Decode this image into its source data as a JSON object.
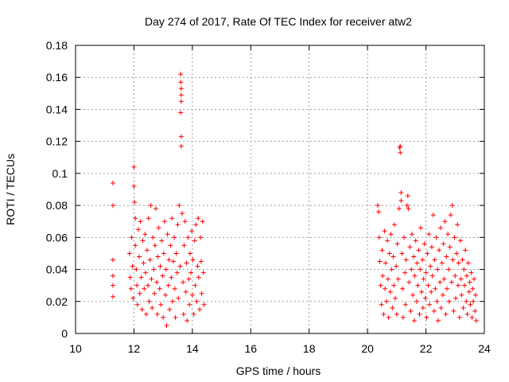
{
  "chart_data": {
    "type": "scatter",
    "title": "Day 274 of 2017, Rate Of TEC Index for receiver atw2",
    "xlabel": "GPS time / hours",
    "ylabel": "ROTI / TECUs",
    "xlim": [
      10,
      24
    ],
    "ylim": [
      0,
      0.18
    ],
    "x_ticks": [
      "10",
      "12",
      "14",
      "16",
      "18",
      "20",
      "22",
      "24"
    ],
    "y_ticks": [
      "0",
      "0.02",
      "0.04",
      "0.06",
      "0.08",
      "0.1",
      "0.12",
      "0.14",
      "0.16",
      "0.18"
    ],
    "grid": true,
    "marker": "+",
    "color": "#ff0000",
    "series": [
      {
        "name": "ROTI",
        "points": [
          [
            11.28,
            0.094
          ],
          [
            11.28,
            0.08
          ],
          [
            11.28,
            0.046
          ],
          [
            11.28,
            0.036
          ],
          [
            11.28,
            0.03
          ],
          [
            11.28,
            0.023
          ],
          [
            11.85,
            0.05
          ],
          [
            11.87,
            0.035
          ],
          [
            11.9,
            0.028
          ],
          [
            11.92,
            0.06
          ],
          [
            11.95,
            0.042
          ],
          [
            11.97,
            0.022
          ],
          [
            12.0,
            0.104
          ],
          [
            12.0,
            0.092
          ],
          [
            12.02,
            0.082
          ],
          [
            12.05,
            0.072
          ],
          [
            12.05,
            0.055
          ],
          [
            12.08,
            0.04
          ],
          [
            12.1,
            0.03
          ],
          [
            12.12,
            0.018
          ],
          [
            12.15,
            0.065
          ],
          [
            12.18,
            0.048
          ],
          [
            12.2,
            0.025
          ],
          [
            12.22,
            0.07
          ],
          [
            12.25,
            0.035
          ],
          [
            12.28,
            0.015
          ],
          [
            12.3,
            0.058
          ],
          [
            12.33,
            0.044
          ],
          [
            12.35,
            0.028
          ],
          [
            12.38,
            0.062
          ],
          [
            12.4,
            0.038
          ],
          [
            12.42,
            0.012
          ],
          [
            12.45,
            0.052
          ],
          [
            12.48,
            0.03
          ],
          [
            12.5,
            0.072
          ],
          [
            12.52,
            0.02
          ],
          [
            12.55,
            0.046
          ],
          [
            12.58,
            0.08
          ],
          [
            12.6,
            0.034
          ],
          [
            12.62,
            0.016
          ],
          [
            12.65,
            0.06
          ],
          [
            12.68,
            0.04
          ],
          [
            12.7,
            0.025
          ],
          [
            12.72,
            0.055
          ],
          [
            12.75,
            0.078
          ],
          [
            12.78,
            0.032
          ],
          [
            12.8,
            0.012
          ],
          [
            12.82,
            0.048
          ],
          [
            12.85,
            0.066
          ],
          [
            12.88,
            0.028
          ],
          [
            12.9,
            0.042
          ],
          [
            12.92,
            0.018
          ],
          [
            12.95,
            0.058
          ],
          [
            12.98,
            0.036
          ],
          [
            13.0,
            0.01
          ],
          [
            13.02,
            0.05
          ],
          [
            13.05,
            0.07
          ],
          [
            13.08,
            0.024
          ],
          [
            13.1,
            0.04
          ],
          [
            13.12,
            0.005
          ],
          [
            13.15,
            0.062
          ],
          [
            13.18,
            0.03
          ],
          [
            13.2,
            0.046
          ],
          [
            13.22,
            0.015
          ],
          [
            13.25,
            0.055
          ],
          [
            13.28,
            0.035
          ],
          [
            13.3,
            0.072
          ],
          [
            13.32,
            0.02
          ],
          [
            13.35,
            0.045
          ],
          [
            13.38,
            0.06
          ],
          [
            13.4,
            0.028
          ],
          [
            13.42,
            0.01
          ],
          [
            13.45,
            0.05
          ],
          [
            13.48,
            0.038
          ],
          [
            13.5,
            0.068
          ],
          [
            13.52,
            0.022
          ],
          [
            13.55,
            0.08
          ],
          [
            13.58,
            0.042
          ],
          [
            13.6,
            0.162
          ],
          [
            13.6,
            0.157
          ],
          [
            13.62,
            0.153
          ],
          [
            13.62,
            0.149
          ],
          [
            13.62,
            0.145
          ],
          [
            13.6,
            0.138
          ],
          [
            13.62,
            0.123
          ],
          [
            13.62,
            0.117
          ],
          [
            13.65,
            0.075
          ],
          [
            13.68,
            0.032
          ],
          [
            13.7,
            0.012
          ],
          [
            13.72,
            0.055
          ],
          [
            13.75,
            0.07
          ],
          [
            13.78,
            0.026
          ],
          [
            13.8,
            0.044
          ],
          [
            13.82,
            0.008
          ],
          [
            13.85,
            0.06
          ],
          [
            13.88,
            0.034
          ],
          [
            13.9,
            0.018
          ],
          [
            13.92,
            0.05
          ],
          [
            13.95,
            0.038
          ],
          [
            13.98,
            0.064
          ],
          [
            14.0,
            0.024
          ],
          [
            14.02,
            0.046
          ],
          [
            14.05,
            0.012
          ],
          [
            14.08,
            0.058
          ],
          [
            14.1,
            0.03
          ],
          [
            14.12,
            0.068
          ],
          [
            14.15,
            0.02
          ],
          [
            14.18,
            0.042
          ],
          [
            14.2,
            0.072
          ],
          [
            14.22,
            0.035
          ],
          [
            14.25,
            0.015
          ],
          [
            14.28,
            0.06
          ],
          [
            14.3,
            0.045
          ],
          [
            14.32,
            0.025
          ],
          [
            14.35,
            0.07
          ],
          [
            14.38,
            0.038
          ],
          [
            14.4,
            0.018
          ],
          [
            20.35,
            0.08
          ],
          [
            20.38,
            0.076
          ],
          [
            20.4,
            0.06
          ],
          [
            20.42,
            0.045
          ],
          [
            20.45,
            0.03
          ],
          [
            20.48,
            0.018
          ],
          [
            20.5,
            0.052
          ],
          [
            20.52,
            0.036
          ],
          [
            20.55,
            0.012
          ],
          [
            20.58,
            0.064
          ],
          [
            20.6,
            0.028
          ],
          [
            20.62,
            0.044
          ],
          [
            20.65,
            0.02
          ],
          [
            20.68,
            0.058
          ],
          [
            20.7,
            0.034
          ],
          [
            20.72,
            0.01
          ],
          [
            20.75,
            0.05
          ],
          [
            20.78,
            0.026
          ],
          [
            20.8,
            0.062
          ],
          [
            20.82,
            0.04
          ],
          [
            20.85,
            0.016
          ],
          [
            20.88,
            0.048
          ],
          [
            20.9,
            0.03
          ],
          [
            20.92,
            0.068
          ],
          [
            20.95,
            0.022
          ],
          [
            20.98,
            0.042
          ],
          [
            21.0,
            0.012
          ],
          [
            21.02,
            0.056
          ],
          [
            21.05,
            0.034
          ],
          [
            21.08,
            0.078
          ],
          [
            21.1,
            0.116
          ],
          [
            21.12,
            0.117
          ],
          [
            21.12,
            0.113
          ],
          [
            21.15,
            0.088
          ],
          [
            21.15,
            0.083
          ],
          [
            21.18,
            0.05
          ],
          [
            21.2,
            0.028
          ],
          [
            21.22,
            0.01
          ],
          [
            21.25,
            0.06
          ],
          [
            21.28,
            0.038
          ],
          [
            21.3,
            0.018
          ],
          [
            21.32,
            0.046
          ],
          [
            21.35,
            0.08
          ],
          [
            21.38,
            0.086
          ],
          [
            21.4,
            0.078
          ],
          [
            21.42,
            0.032
          ],
          [
            21.45,
            0.054
          ],
          [
            21.48,
            0.014
          ],
          [
            21.5,
            0.04
          ],
          [
            21.52,
            0.062
          ],
          [
            21.55,
            0.024
          ],
          [
            21.58,
            0.048
          ],
          [
            21.6,
            0.008
          ],
          [
            21.62,
            0.036
          ],
          [
            21.65,
            0.058
          ],
          [
            21.68,
            0.02
          ],
          [
            21.7,
            0.044
          ],
          [
            21.72,
            0.03
          ],
          [
            21.75,
            0.052
          ],
          [
            21.78,
            0.012
          ],
          [
            21.8,
            0.04
          ],
          [
            21.82,
            0.066
          ],
          [
            21.85,
            0.026
          ],
          [
            21.88,
            0.046
          ],
          [
            21.9,
            0.016
          ],
          [
            21.92,
            0.034
          ],
          [
            21.95,
            0.056
          ],
          [
            21.98,
            0.022
          ],
          [
            22.0,
            0.038
          ],
          [
            22.02,
            0.01
          ],
          [
            22.05,
            0.05
          ],
          [
            22.08,
            0.03
          ],
          [
            22.1,
            0.062
          ],
          [
            22.12,
            0.018
          ],
          [
            22.15,
            0.042
          ],
          [
            22.18,
            0.026
          ],
          [
            22.2,
            0.054
          ],
          [
            22.22,
            0.036
          ],
          [
            22.25,
            0.074
          ],
          [
            22.28,
            0.014
          ],
          [
            22.3,
            0.046
          ],
          [
            22.32,
            0.028
          ],
          [
            22.35,
            0.06
          ],
          [
            22.38,
            0.02
          ],
          [
            22.4,
            0.04
          ],
          [
            22.42,
            0.008
          ],
          [
            22.45,
            0.052
          ],
          [
            22.48,
            0.032
          ],
          [
            22.5,
            0.066
          ],
          [
            22.52,
            0.016
          ],
          [
            22.55,
            0.044
          ],
          [
            22.58,
            0.024
          ],
          [
            22.6,
            0.056
          ],
          [
            22.62,
            0.034
          ],
          [
            22.65,
            0.07
          ],
          [
            22.68,
            0.012
          ],
          [
            22.7,
            0.048
          ],
          [
            22.72,
            0.028
          ],
          [
            22.75,
            0.062
          ],
          [
            22.78,
            0.04
          ],
          [
            22.8,
            0.02
          ],
          [
            22.82,
            0.054
          ],
          [
            22.85,
            0.074
          ],
          [
            22.88,
            0.032
          ],
          [
            22.9,
            0.08
          ],
          [
            22.92,
            0.046
          ],
          [
            22.95,
            0.014
          ],
          [
            22.98,
            0.06
          ],
          [
            23.0,
            0.036
          ],
          [
            23.02,
            0.022
          ],
          [
            23.05,
            0.05
          ],
          [
            23.08,
            0.068
          ],
          [
            23.1,
            0.03
          ],
          [
            23.12,
            0.044
          ],
          [
            23.15,
            0.01
          ],
          [
            23.18,
            0.058
          ],
          [
            23.2,
            0.034
          ],
          [
            23.22,
            0.024
          ],
          [
            23.25,
            0.046
          ],
          [
            23.28,
            0.016
          ],
          [
            23.3,
            0.04
          ],
          [
            23.32,
            0.03
          ],
          [
            23.35,
            0.052
          ],
          [
            23.38,
            0.02
          ],
          [
            23.4,
            0.036
          ],
          [
            23.42,
            0.012
          ],
          [
            23.45,
            0.044
          ],
          [
            23.48,
            0.026
          ],
          [
            23.5,
            0.032
          ],
          [
            23.52,
            0.018
          ],
          [
            23.55,
            0.038
          ],
          [
            23.58,
            0.01
          ],
          [
            23.6,
            0.028
          ],
          [
            23.62,
            0.02
          ],
          [
            23.65,
            0.034
          ],
          [
            23.68,
            0.014
          ],
          [
            23.7,
            0.024
          ],
          [
            23.72,
            0.008
          ]
        ]
      }
    ]
  }
}
